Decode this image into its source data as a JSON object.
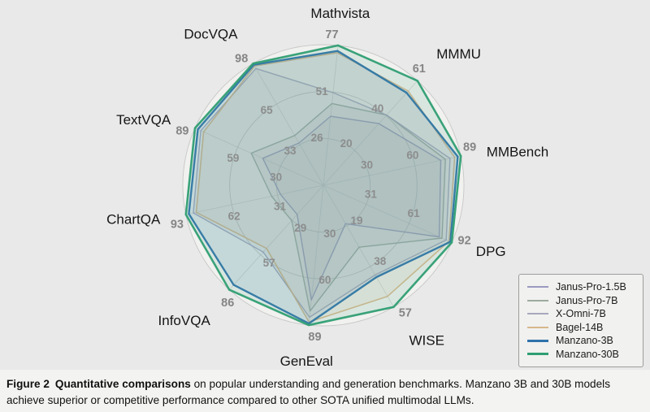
{
  "caption": {
    "figure_label": "Figure 2",
    "bold_text": "Quantitative comparisons",
    "rest_text": "on popular understanding and generation benchmarks. Manzano 3B and 30B models achieve superior or competitive performance compared to other SOTA unified multimodal LLMs."
  },
  "chart_data": {
    "type": "radar",
    "title": "",
    "grid": "circular rings at 1/3, 2/3 and max of each axis",
    "legend_position": "bottom-right",
    "background_color": "#e9e9e9",
    "plot_fill_color": "#f1f1ef",
    "grid_color": "#c7c7c7",
    "tick_label_color": "#8d8d8d",
    "categories": [
      "Mathvista",
      "MMMU",
      "MMBench",
      "DPG",
      "WISE",
      "GenEval",
      "InfoVQA",
      "ChartQA",
      "TextVQA",
      "DocVQA"
    ],
    "axis_max": [
      77,
      61,
      89,
      92,
      57,
      89,
      86,
      93,
      89,
      98
    ],
    "axis_ticks": [
      [
        26,
        51,
        77
      ],
      [
        20,
        40,
        61
      ],
      [
        30,
        60,
        89
      ],
      [
        31,
        61,
        92
      ],
      [
        19,
        38,
        57
      ],
      [
        30,
        60,
        89
      ],
      [
        29,
        57,
        86
      ],
      [
        31,
        62,
        93
      ],
      [
        30,
        59,
        89
      ],
      [
        33,
        65,
        98
      ]
    ],
    "series": [
      {
        "name": "Janus-Pro-1.5B",
        "color": "#9b9ac1",
        "stroke_width": 1.4,
        "values": [
          38,
          36,
          76,
          83,
          18,
          73,
          24,
          29,
          42,
          34
        ]
      },
      {
        "name": "Janus-Pro-7B",
        "color": "#9cab9f",
        "stroke_width": 1.4,
        "values": [
          45,
          41,
          79,
          85,
          29,
          80,
          29,
          35,
          50,
          40
        ]
      },
      {
        "name": "X-Omni-7B",
        "color": "#a7a7c0",
        "stroke_width": 1.4,
        "values": [
          51,
          41,
          82,
          88,
          42,
          84,
          55,
          88,
          85,
          94
        ]
      },
      {
        "name": "Bagel-14B",
        "color": "#d7b78c",
        "stroke_width": 1.6,
        "values": [
          73,
          55,
          85,
          90,
          52,
          87,
          52,
          86,
          83,
          96
        ]
      },
      {
        "name": "Manzano-3B",
        "color": "#2f72ab",
        "stroke_width": 2.4,
        "values": [
          74,
          54,
          87,
          91,
          43,
          88,
          82,
          91,
          87,
          97
        ]
      },
      {
        "name": "Manzano-30B",
        "color": "#2f9e72",
        "stroke_width": 2.6,
        "values": [
          77,
          61,
          89,
          92,
          57,
          89,
          86,
          93,
          89,
          98
        ]
      }
    ]
  }
}
